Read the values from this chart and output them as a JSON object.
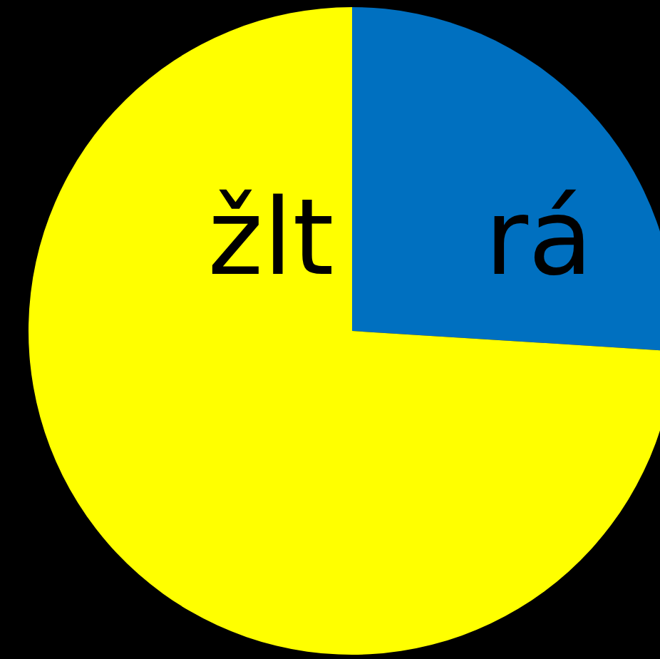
{
  "chart_data": {
    "type": "pie",
    "categories": [
      "rá",
      "žlt"
    ],
    "values": [
      26,
      74
    ],
    "colors": [
      "#0070c0",
      "#ffff00"
    ]
  }
}
